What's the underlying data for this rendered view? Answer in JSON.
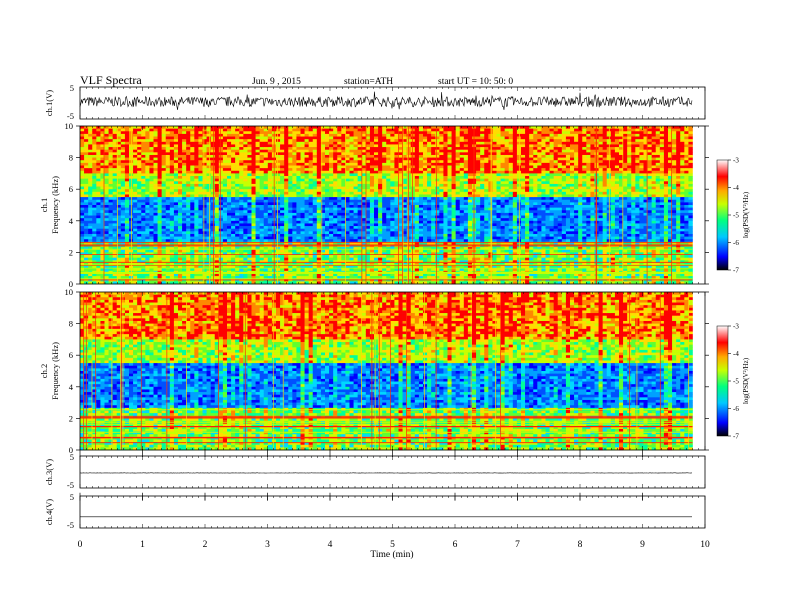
{
  "header": {
    "title": "VLF  Spectra",
    "date": "Jun. 9  , 2015",
    "station": "station=ATH",
    "start": "start  UT  =   10: 50: 0"
  },
  "chart_data": [
    {
      "type": "line",
      "panel": "ch1-waveform",
      "ylabel": "ch.1(V)",
      "ylim": [
        -5,
        5
      ],
      "yticks": [
        "5",
        "-5"
      ],
      "baseline": 0.4,
      "amplitude": 1.6
    },
    {
      "type": "heatmap",
      "panel": "ch1-spectrogram",
      "ylabel_channel": "ch.1",
      "ylabel": "Frequency  (kHz)",
      "ylim": [
        0,
        10
      ],
      "yticks": [
        "0",
        "2",
        "4",
        "6",
        "8",
        "10"
      ],
      "colorbar": {
        "label": "log(PSD(V²/Hz)",
        "range": [
          -7,
          -3
        ],
        "ticks": [
          "-3",
          "-4",
          "-5",
          "-6",
          "-7"
        ]
      }
    },
    {
      "type": "heatmap",
      "panel": "ch2-spectrogram",
      "ylabel_channel": "ch.2",
      "ylabel": "Frequency  (kHz)",
      "ylim": [
        0,
        10
      ],
      "yticks": [
        "0",
        "2",
        "4",
        "6",
        "8",
        "10"
      ],
      "colorbar": {
        "label": "log(PSD(V²/Hz)",
        "range": [
          -7,
          -3
        ],
        "ticks": [
          "-3",
          "-4",
          "-5",
          "-6",
          "-7"
        ]
      }
    },
    {
      "type": "line",
      "panel": "ch3-waveform",
      "ylabel": "ch.3(V)",
      "ylim": [
        -5,
        5
      ],
      "yticks": [
        "5",
        "-5"
      ],
      "baseline": -0.3,
      "amplitude": 0.05
    },
    {
      "type": "line",
      "panel": "ch4-waveform",
      "ylabel": "ch.4(V)",
      "ylim": [
        -5,
        5
      ],
      "yticks": [
        "5",
        "-5"
      ],
      "baseline": -1.5,
      "amplitude": 0.0
    }
  ],
  "xaxis": {
    "label": "Time  (min)",
    "xlim": [
      0,
      10
    ],
    "data_end": 9.8,
    "ticks": [
      "0",
      "1",
      "2",
      "3",
      "4",
      "5",
      "6",
      "7",
      "8",
      "9",
      "10"
    ]
  },
  "colors": {
    "frame": "#000000",
    "trace": "#000000",
    "scale": [
      "#000000",
      "#0000ff",
      "#00c8ff",
      "#00ff80",
      "#c8ff00",
      "#ffaa00",
      "#ff0000",
      "#ffffff"
    ]
  }
}
